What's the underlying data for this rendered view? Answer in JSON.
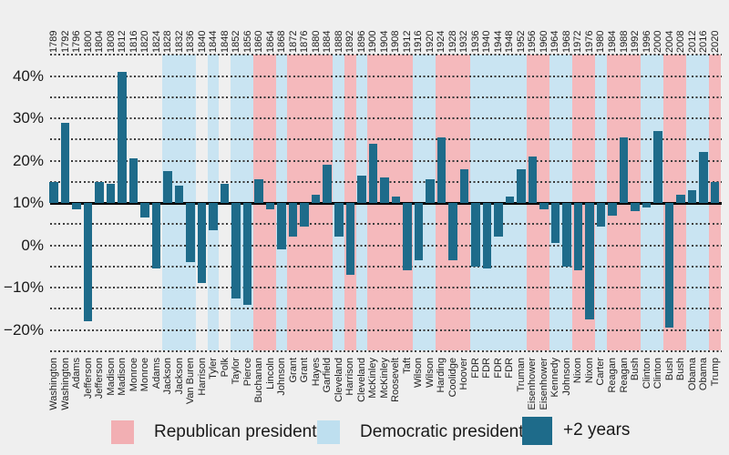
{
  "legend": {
    "republican_label": "Republican president",
    "democratic_label": "Democratic president",
    "bar_label": "+2 years"
  },
  "colors": {
    "background": "#EFEFEF",
    "republican_band": "#F5B9BC",
    "democratic_band": "#C9E4F2",
    "bar": "#1E6B8A",
    "legend_republican_swatch": "#F2AFB3",
    "legend_democratic_swatch": "#BEDFEF",
    "legend_bar_swatch": "#1E6B8A",
    "gridline": "#3B3B3B",
    "baseline": "#000000",
    "text": "#1A1A1A"
  },
  "chart_data": {
    "type": "bar",
    "title": "",
    "xlabel": "",
    "ylabel": "",
    "baseline_value": 10,
    "ylim": [
      -25,
      45
    ],
    "gridline_step": 5,
    "grid": "dotted-horizontal",
    "legend_position": "bottom",
    "y_tick_labels": [
      "40%",
      "30%",
      "20%",
      "10%",
      "0%",
      "−10%",
      "−20%"
    ],
    "y_tick_values": [
      40,
      30,
      20,
      10,
      0,
      -10,
      -20
    ],
    "bars": [
      {
        "year": "1789",
        "president": "Washington",
        "party": "",
        "value": 15
      },
      {
        "year": "1792",
        "president": "Washington",
        "party": "",
        "value": 29
      },
      {
        "year": "1796",
        "president": "Adams",
        "party": "",
        "value": 8.5
      },
      {
        "year": "1800",
        "president": "Jefferson",
        "party": "",
        "value": -18
      },
      {
        "year": "1804",
        "president": "Jefferson",
        "party": "",
        "value": 15
      },
      {
        "year": "1808",
        "president": "Madison",
        "party": "",
        "value": 14.5
      },
      {
        "year": "1812",
        "president": "Madison",
        "party": "",
        "value": 41
      },
      {
        "year": "1816",
        "president": "Monroe",
        "party": "",
        "value": 20.5
      },
      {
        "year": "1820",
        "president": "Monroe",
        "party": "",
        "value": 6.5
      },
      {
        "year": "1824",
        "president": "Adams",
        "party": "",
        "value": -5.5
      },
      {
        "year": "1828",
        "president": "Jackson",
        "party": "D",
        "value": 17.5
      },
      {
        "year": "1832",
        "president": "Jackson",
        "party": "D",
        "value": 14
      },
      {
        "year": "1836",
        "president": "Van Buren",
        "party": "D",
        "value": -4
      },
      {
        "year": "1840",
        "president": "Harrison",
        "party": "",
        "value": -9
      },
      {
        "year": "1844",
        "president": "Tyler",
        "party": "D",
        "value": 3.5
      },
      {
        "year": "1848",
        "president": "Polk",
        "party": "",
        "value": 14.5
      },
      {
        "year": "1852",
        "president": "Taylor",
        "party": "D",
        "value": -12.5
      },
      {
        "year": "1856",
        "president": "Pierce",
        "party": "D",
        "value": -14
      },
      {
        "year": "1860",
        "president": "Buchanan",
        "party": "R",
        "value": 15.5
      },
      {
        "year": "1864",
        "president": "Lincoln",
        "party": "R",
        "value": 8.5
      },
      {
        "year": "1868",
        "president": "Johnson",
        "party": "D",
        "value": -1
      },
      {
        "year": "1872",
        "president": "Grant",
        "party": "R",
        "value": 2
      },
      {
        "year": "1876",
        "president": "Grant",
        "party": "R",
        "value": 4.5
      },
      {
        "year": "1880",
        "president": "Hayes",
        "party": "R",
        "value": 12
      },
      {
        "year": "1884",
        "president": "Garfield",
        "party": "R",
        "value": 19
      },
      {
        "year": "1888",
        "president": "Cleveland",
        "party": "D",
        "value": 2
      },
      {
        "year": "1892",
        "president": "Harrison",
        "party": "R",
        "value": -7
      },
      {
        "year": "1896",
        "president": "Cleveland",
        "party": "D",
        "value": 16.5
      },
      {
        "year": "1900",
        "president": "McKinley",
        "party": "R",
        "value": 24
      },
      {
        "year": "1904",
        "president": "McKinley",
        "party": "R",
        "value": 16
      },
      {
        "year": "1908",
        "president": "Roosevelt",
        "party": "R",
        "value": 11.5
      },
      {
        "year": "1912",
        "president": "Taft",
        "party": "R",
        "value": -6
      },
      {
        "year": "1916",
        "president": "Wilson",
        "party": "D",
        "value": -3.5
      },
      {
        "year": "1920",
        "president": "Wilson",
        "party": "D",
        "value": 15.5
      },
      {
        "year": "1924",
        "president": "Harding",
        "party": "R",
        "value": 25.5
      },
      {
        "year": "1928",
        "president": "Coolidge",
        "party": "R",
        "value": -3.5
      },
      {
        "year": "1932",
        "president": "Hoover",
        "party": "R",
        "value": 18
      },
      {
        "year": "1936",
        "president": "FDR",
        "party": "D",
        "value": -5
      },
      {
        "year": "1940",
        "president": "FDR",
        "party": "D",
        "value": -5.5
      },
      {
        "year": "1944",
        "president": "FDR",
        "party": "D",
        "value": 2
      },
      {
        "year": "1948",
        "president": "FDR",
        "party": "D",
        "value": 11.5
      },
      {
        "year": "1952",
        "president": "Truman",
        "party": "D",
        "value": 18
      },
      {
        "year": "1956",
        "president": "Eisenhower",
        "party": "R",
        "value": 21
      },
      {
        "year": "1960",
        "president": "Eisenhower",
        "party": "R",
        "value": 8.5
      },
      {
        "year": "1964",
        "president": "Kennedy",
        "party": "D",
        "value": 0.5
      },
      {
        "year": "1968",
        "president": "Johnson",
        "party": "D",
        "value": -5
      },
      {
        "year": "1972",
        "president": "Nixon",
        "party": "R",
        "value": -6
      },
      {
        "year": "1976",
        "president": "Nixon",
        "party": "R",
        "value": -17.5
      },
      {
        "year": "1980",
        "president": "Carter",
        "party": "D",
        "value": 4.5
      },
      {
        "year": "1984",
        "president": "Reagan",
        "party": "R",
        "value": 7
      },
      {
        "year": "1988",
        "president": "Reagan",
        "party": "R",
        "value": 25.5
      },
      {
        "year": "1992",
        "president": "Bush",
        "party": "R",
        "value": 8
      },
      {
        "year": "1996",
        "president": "Clinton",
        "party": "D",
        "value": 9
      },
      {
        "year": "2000",
        "president": "Clinton",
        "party": "D",
        "value": 27
      },
      {
        "year": "2004",
        "president": "Bush",
        "party": "R",
        "value": -19.5
      },
      {
        "year": "2008",
        "president": "Bush",
        "party": "R",
        "value": 12
      },
      {
        "year": "2012",
        "president": "Obama",
        "party": "D",
        "value": 13
      },
      {
        "year": "2016",
        "president": "Obama",
        "party": "D",
        "value": 22
      },
      {
        "year": "2020",
        "president": "Trump",
        "party": "R",
        "value": 15
      }
    ]
  }
}
